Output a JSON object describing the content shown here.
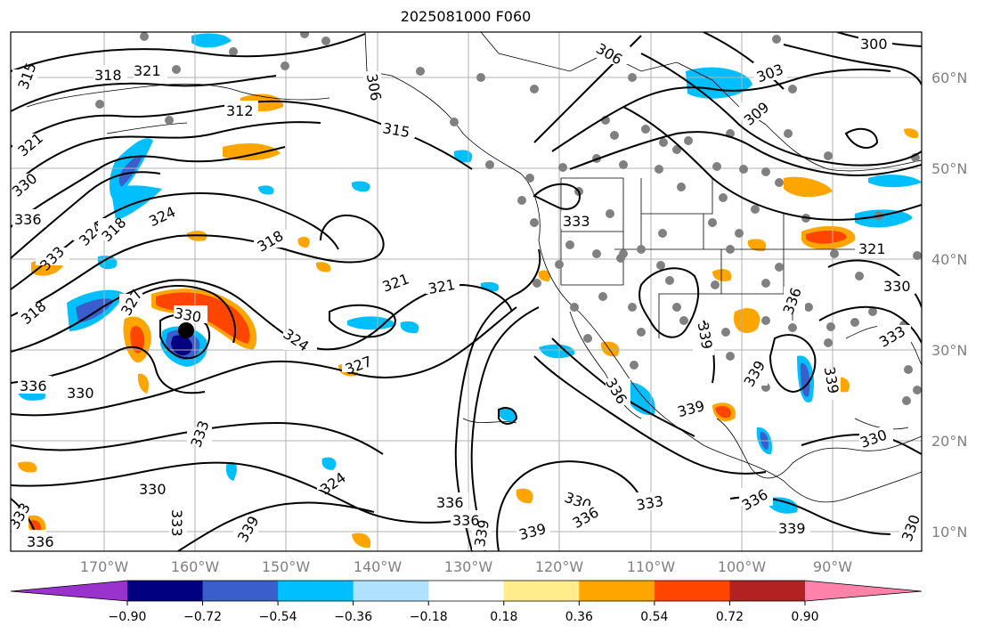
{
  "title": "2025081000 F060",
  "latitudes": [
    "60°N",
    "50°N",
    "40°N",
    "30°N",
    "20°N",
    "10°N"
  ],
  "longitudes": [
    "170°W",
    "160°W",
    "150°W",
    "140°W",
    "130°W",
    "120°W",
    "110°W",
    "100°W",
    "90°W"
  ],
  "colorbar": {
    "colors": [
      "#9a32cd",
      "#000080",
      "#3a5fcd",
      "#00bfff",
      "#b0e2ff",
      "#ffffff",
      "#ffec8b",
      "#ffa500",
      "#ff4500",
      "#b22222",
      "#ff82ab"
    ],
    "ticks": [
      "−0.90",
      "−0.72",
      "−0.54",
      "−0.36",
      "−0.18",
      "0.18",
      "0.36",
      "0.54",
      "0.72",
      "0.90"
    ]
  },
  "contour_labels": [
    "315",
    "318",
    "321",
    "324",
    "327",
    "330",
    "333",
    "336",
    "339",
    "312",
    "306",
    "303",
    "309",
    "300"
  ]
}
